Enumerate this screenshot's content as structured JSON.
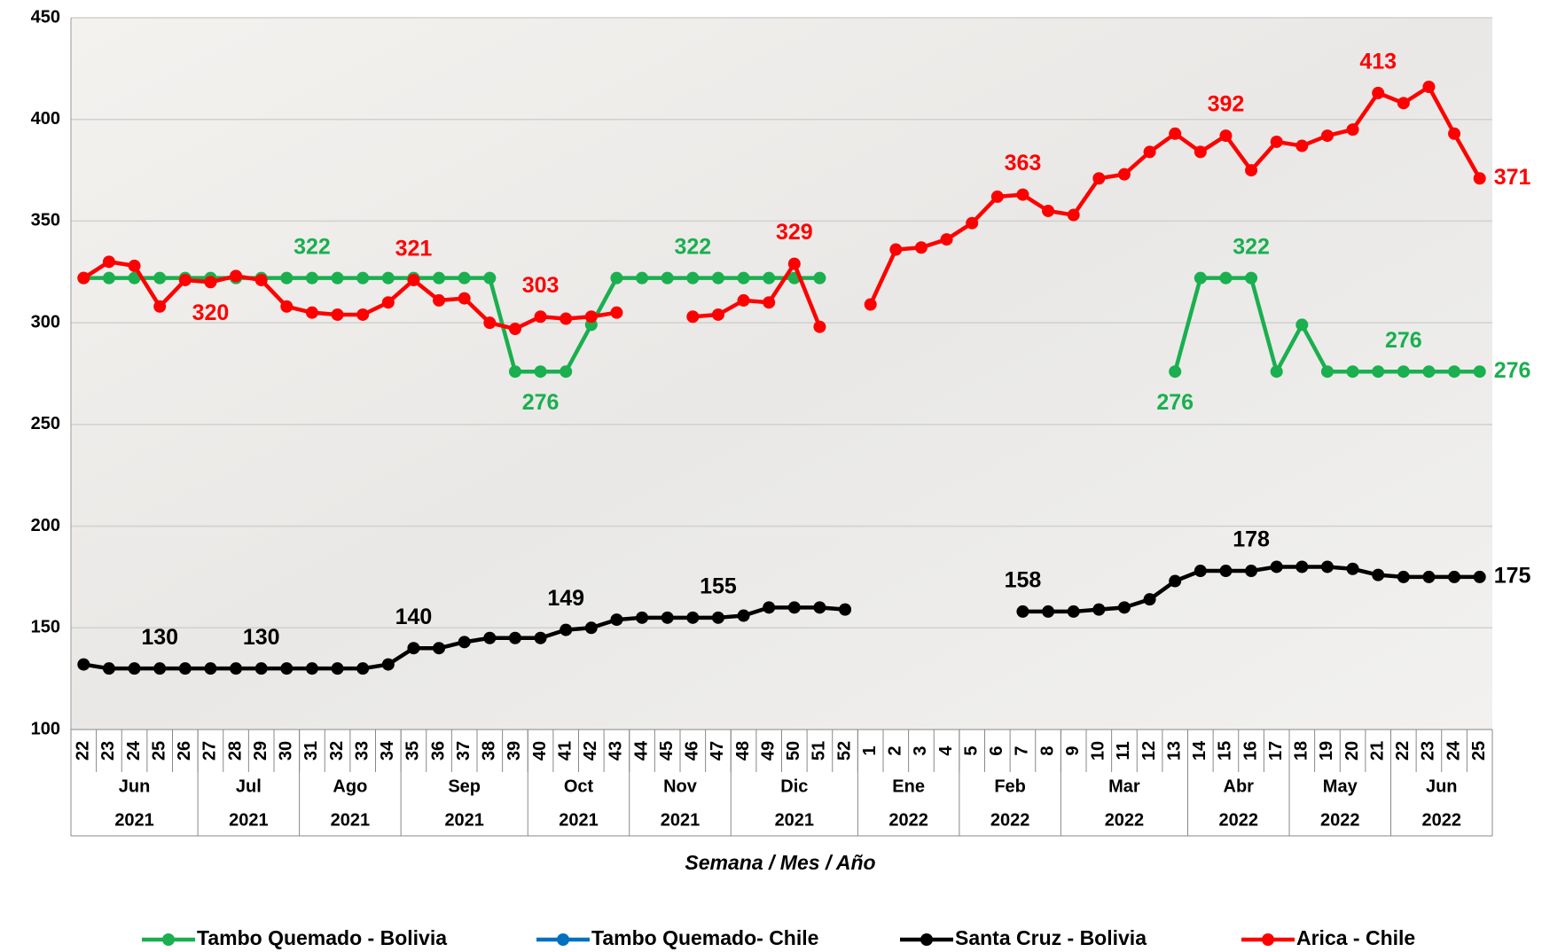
{
  "chart_data": {
    "type": "line",
    "x_label": "Semana / Mes / Año",
    "categories": [
      "22",
      "23",
      "24",
      "25",
      "26",
      "27",
      "28",
      "29",
      "30",
      "31",
      "32",
      "33",
      "34",
      "35",
      "36",
      "37",
      "38",
      "39",
      "40",
      "41",
      "42",
      "43",
      "44",
      "45",
      "46",
      "47",
      "48",
      "49",
      "50",
      "51",
      "52",
      "1",
      "2",
      "3",
      "4",
      "5",
      "6",
      "7",
      "8",
      "9",
      "10",
      "11",
      "12",
      "13",
      "14",
      "15",
      "16",
      "17",
      "18",
      "19",
      "20",
      "21",
      "22",
      "23",
      "24",
      "25"
    ],
    "groups": [
      {
        "month": "Jun",
        "year": "2021",
        "weeks": 5
      },
      {
        "month": "Jul",
        "year": "2021",
        "weeks": 4
      },
      {
        "month": "Ago",
        "year": "2021",
        "weeks": 4
      },
      {
        "month": "Sep",
        "year": "2021",
        "weeks": 5
      },
      {
        "month": "Oct",
        "year": "2021",
        "weeks": 4
      },
      {
        "month": "Nov",
        "year": "2021",
        "weeks": 4
      },
      {
        "month": "Dic",
        "year": "2021",
        "weeks": 5
      },
      {
        "month": "Ene",
        "year": "2022",
        "weeks": 4
      },
      {
        "month": "Feb",
        "year": "2022",
        "weeks": 4
      },
      {
        "month": "Mar",
        "year": "2022",
        "weeks": 5
      },
      {
        "month": "Abr",
        "year": "2022",
        "weeks": 4
      },
      {
        "month": "May",
        "year": "2022",
        "weeks": 4
      },
      {
        "month": "Jun",
        "year": "2022",
        "weeks": 4
      }
    ],
    "ylim": [
      100,
      450
    ],
    "yticks": [
      100,
      150,
      200,
      250,
      300,
      350,
      400,
      450
    ],
    "grid": true,
    "legend": "bottom",
    "series": [
      {
        "name": "Tambo Quemado - Bolivia",
        "color": "#1aaf4f",
        "values": [
          322,
          322,
          322,
          322,
          322,
          322,
          322,
          322,
          322,
          322,
          322,
          322,
          322,
          322,
          322,
          322,
          322,
          276,
          276,
          276,
          299,
          322,
          322,
          322,
          322,
          322,
          322,
          322,
          322,
          322,
          null,
          null,
          null,
          null,
          null,
          null,
          null,
          null,
          null,
          null,
          null,
          null,
          null,
          276,
          322,
          322,
          322,
          276,
          299,
          276,
          276,
          276,
          276,
          276,
          276,
          276
        ],
        "value_labels": [
          null,
          null,
          null,
          null,
          null,
          null,
          null,
          null,
          null,
          "322",
          null,
          null,
          null,
          null,
          null,
          null,
          null,
          null,
          "276",
          null,
          null,
          null,
          null,
          null,
          "322",
          null,
          null,
          null,
          null,
          null,
          null,
          null,
          null,
          null,
          null,
          null,
          null,
          null,
          null,
          null,
          null,
          null,
          null,
          "276",
          null,
          null,
          "322",
          null,
          null,
          null,
          null,
          null,
          "276",
          null,
          null,
          "276"
        ]
      },
      {
        "name": "Tambo Quemado- Chile",
        "color": "#0070c0",
        "values": [
          null,
          null,
          null,
          null,
          null,
          null,
          null,
          null,
          null,
          null,
          null,
          null,
          null,
          null,
          null,
          null,
          null,
          null,
          null,
          null,
          null,
          null,
          null,
          null,
          null,
          null,
          null,
          null,
          null,
          null,
          null,
          null,
          null,
          null,
          null,
          null,
          null,
          null,
          null,
          null,
          null,
          null,
          null,
          null,
          null,
          null,
          null,
          null,
          null,
          null,
          null,
          null,
          null,
          null,
          null,
          null
        ]
      },
      {
        "name": "Santa Cruz - Bolivia",
        "color": "#000000",
        "values": [
          132,
          130,
          130,
          130,
          130,
          130,
          130,
          130,
          130,
          130,
          130,
          130,
          132,
          140,
          140,
          143,
          145,
          145,
          145,
          149,
          150,
          154,
          155,
          155,
          155,
          155,
          156,
          160,
          160,
          160,
          159,
          null,
          null,
          null,
          null,
          null,
          null,
          158,
          158,
          158,
          159,
          160,
          164,
          173,
          178,
          178,
          178,
          180,
          180,
          180,
          179,
          176,
          175,
          175,
          175,
          175
        ],
        "value_labels": [
          null,
          null,
          null,
          "130",
          null,
          null,
          null,
          "130",
          null,
          null,
          null,
          null,
          null,
          "140",
          null,
          null,
          null,
          null,
          null,
          "149",
          null,
          null,
          null,
          null,
          null,
          "155",
          null,
          null,
          null,
          null,
          null,
          null,
          null,
          null,
          null,
          null,
          null,
          "158",
          null,
          null,
          null,
          null,
          null,
          null,
          null,
          null,
          "178",
          null,
          null,
          null,
          null,
          null,
          null,
          null,
          null,
          "175"
        ]
      },
      {
        "name": "Arica - Chile",
        "color": "#ff0000",
        "values": [
          322,
          330,
          328,
          308,
          321,
          320,
          323,
          321,
          308,
          305,
          304,
          304,
          310,
          321,
          311,
          312,
          300,
          297,
          303,
          302,
          303,
          305,
          null,
          null,
          303,
          304,
          311,
          310,
          329,
          298,
          null,
          309,
          336,
          337,
          341,
          349,
          362,
          363,
          355,
          353,
          371,
          373,
          384,
          393,
          384,
          392,
          375,
          389,
          387,
          392,
          395,
          413,
          408,
          416,
          393,
          371
        ],
        "value_labels": [
          null,
          null,
          null,
          null,
          null,
          "320",
          null,
          null,
          null,
          null,
          null,
          null,
          null,
          "321",
          null,
          null,
          null,
          null,
          "303",
          null,
          null,
          null,
          null,
          null,
          null,
          null,
          null,
          null,
          "329",
          null,
          null,
          null,
          null,
          null,
          null,
          null,
          null,
          "363",
          null,
          null,
          null,
          null,
          null,
          null,
          null,
          "392",
          null,
          null,
          null,
          null,
          null,
          "413",
          null,
          null,
          null,
          "371"
        ]
      }
    ]
  }
}
